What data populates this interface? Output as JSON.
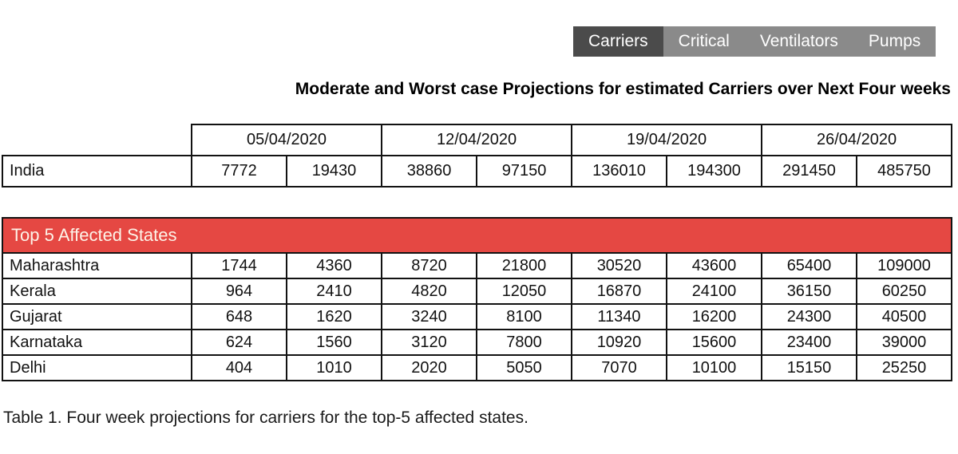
{
  "tabs": {
    "items": [
      {
        "label": "Carriers",
        "selected": true
      },
      {
        "label": "Critical",
        "selected": false
      },
      {
        "label": "Ventilators",
        "selected": false
      },
      {
        "label": "Pumps",
        "selected": false
      }
    ]
  },
  "title": "Moderate and Worst case Projections for estimated Carriers over Next Four weeks",
  "projection_table": {
    "date_headers": [
      "05/04/2020",
      "12/04/2020",
      "19/04/2020",
      "26/04/2020"
    ],
    "rows": [
      {
        "label": "India",
        "values": [
          7772,
          19430,
          38860,
          97150,
          136010,
          194300,
          291450,
          485750
        ]
      }
    ]
  },
  "states_table": {
    "banner": "Top 5 Affected States",
    "rows": [
      {
        "label": "Maharashtra",
        "values": [
          1744,
          4360,
          8720,
          21800,
          30520,
          43600,
          65400,
          109000
        ]
      },
      {
        "label": "Kerala",
        "values": [
          964,
          2410,
          4820,
          12050,
          16870,
          24100,
          36150,
          60250
        ]
      },
      {
        "label": "Gujarat",
        "values": [
          648,
          1620,
          3240,
          8100,
          11340,
          16200,
          24300,
          40500
        ]
      },
      {
        "label": "Karnataka",
        "values": [
          624,
          1560,
          3120,
          7800,
          10920,
          15600,
          23400,
          39000
        ]
      },
      {
        "label": "Delhi",
        "values": [
          404,
          1010,
          2020,
          5050,
          7070,
          10100,
          15150,
          25250
        ]
      }
    ]
  },
  "caption": "Table 1. Four week projections for carriers for the top-5 affected states.",
  "colors": {
    "accent_red": "#e54843",
    "tab_bar_bg": "#8a8a8a",
    "tab_selected_bg": "#4b4b4b",
    "border": "#121212",
    "banner_text": "#fdf3e8"
  }
}
